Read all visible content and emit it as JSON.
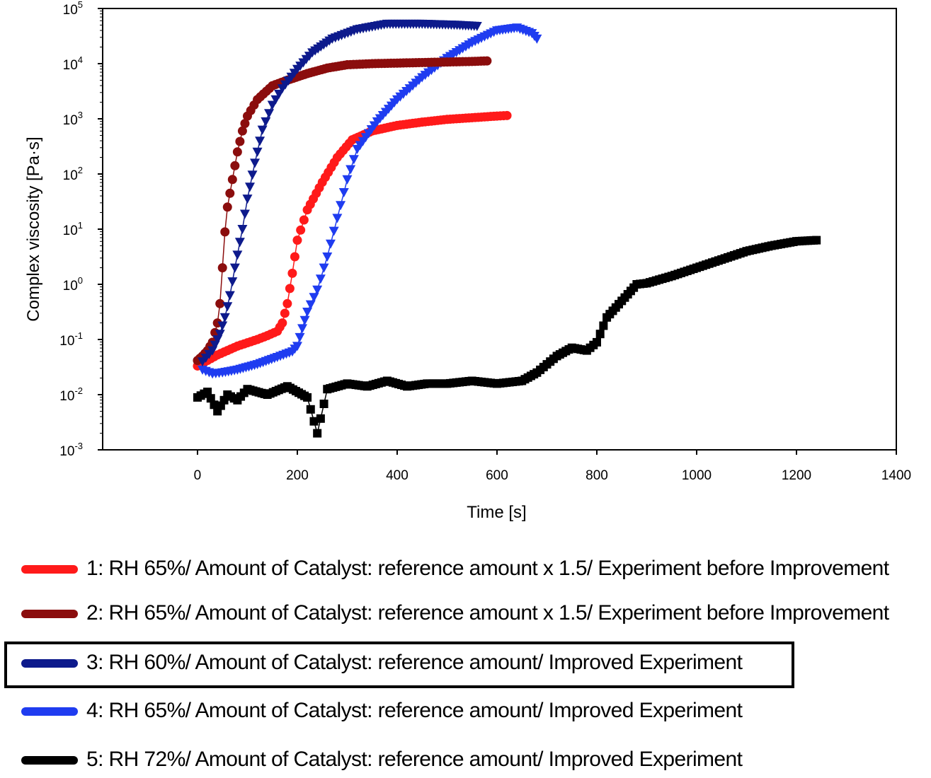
{
  "chart_data": {
    "type": "scatter",
    "xlabel": "Time [s]",
    "ylabel": "Complex viscosity [Pa·s]",
    "xlim": [
      -190,
      1400
    ],
    "ylim_log10": [
      -3,
      5
    ],
    "y_scale": "log",
    "x_ticks": [
      0,
      200,
      400,
      600,
      800,
      1000,
      1200,
      1400
    ],
    "y_ticks": [
      {
        "mantissa": "10",
        "exp": "5"
      },
      {
        "mantissa": "10",
        "exp": "4"
      },
      {
        "mantissa": "10",
        "exp": "3"
      },
      {
        "mantissa": "10",
        "exp": "2"
      },
      {
        "mantissa": "10",
        "exp": "1"
      },
      {
        "mantissa": "10",
        "exp": "0"
      },
      {
        "mantissa": "10",
        "exp": "-1"
      },
      {
        "mantissa": "10",
        "exp": "-2"
      },
      {
        "mantissa": "10",
        "exp": "-3"
      }
    ],
    "series": [
      {
        "name": "1: RH 65%/ Amount of Catalyst: reference amount x 1.5/ Experiment before Improvement",
        "color": "#ff1a1a",
        "marker": "circle",
        "points": [
          [
            0,
            -1.48
          ],
          [
            20,
            -1.38
          ],
          [
            40,
            -1.28
          ],
          [
            60,
            -1.2
          ],
          [
            80,
            -1.12
          ],
          [
            100,
            -1.06
          ],
          [
            120,
            -1.0
          ],
          [
            140,
            -0.93
          ],
          [
            160,
            -0.85
          ],
          [
            170,
            -0.7
          ],
          [
            180,
            -0.35
          ],
          [
            190,
            0.2
          ],
          [
            200,
            0.8
          ],
          [
            220,
            1.35
          ],
          [
            250,
            1.85
          ],
          [
            280,
            2.3
          ],
          [
            310,
            2.62
          ],
          [
            350,
            2.78
          ],
          [
            400,
            2.88
          ],
          [
            450,
            2.94
          ],
          [
            500,
            2.99
          ],
          [
            550,
            3.02
          ],
          [
            600,
            3.05
          ],
          [
            620,
            3.06
          ]
        ]
      },
      {
        "name": "2: RH 65%/ Amount of Catalyst: reference amount x 1.5/ Experiment before Improvement",
        "color": "#8b0d0d",
        "marker": "circle",
        "points": [
          [
            0,
            -1.38
          ],
          [
            10,
            -1.3
          ],
          [
            20,
            -1.2
          ],
          [
            30,
            -1.05
          ],
          [
            40,
            -0.7
          ],
          [
            45,
            -0.35
          ],
          [
            50,
            0.3
          ],
          [
            55,
            0.95
          ],
          [
            60,
            1.4
          ],
          [
            70,
            1.9
          ],
          [
            80,
            2.4
          ],
          [
            90,
            2.78
          ],
          [
            100,
            3.05
          ],
          [
            120,
            3.35
          ],
          [
            150,
            3.6
          ],
          [
            180,
            3.7
          ],
          [
            220,
            3.82
          ],
          [
            260,
            3.92
          ],
          [
            300,
            3.98
          ],
          [
            350,
            4.0
          ],
          [
            400,
            4.01
          ],
          [
            450,
            4.02
          ],
          [
            500,
            4.03
          ],
          [
            550,
            4.04
          ],
          [
            580,
            4.05
          ]
        ]
      },
      {
        "name": "3: RH 60%/ Amount of Catalyst: reference amount/ Improved Experiment",
        "color": "#0d1a8c",
        "marker": "triangle-down",
        "points": [
          [
            10,
            -1.4
          ],
          [
            30,
            -1.2
          ],
          [
            45,
            -0.9
          ],
          [
            55,
            -0.6
          ],
          [
            65,
            -0.2
          ],
          [
            75,
            0.3
          ],
          [
            90,
            1.0
          ],
          [
            100,
            1.55
          ],
          [
            115,
            2.2
          ],
          [
            130,
            2.8
          ],
          [
            150,
            3.25
          ],
          [
            170,
            3.55
          ],
          [
            200,
            3.9
          ],
          [
            230,
            4.2
          ],
          [
            270,
            4.45
          ],
          [
            320,
            4.62
          ],
          [
            380,
            4.72
          ],
          [
            450,
            4.72
          ],
          [
            520,
            4.7
          ],
          [
            560,
            4.68
          ]
        ]
      },
      {
        "name": "4: RH 65%/ Amount of Catalyst: reference amount/ Improved Experiment",
        "color": "#1f3cf0",
        "marker": "triangle-down",
        "points": [
          [
            10,
            -1.55
          ],
          [
            30,
            -1.62
          ],
          [
            50,
            -1.6
          ],
          [
            80,
            -1.55
          ],
          [
            120,
            -1.45
          ],
          [
            160,
            -1.32
          ],
          [
            190,
            -1.22
          ],
          [
            200,
            -1.12
          ],
          [
            210,
            -0.8
          ],
          [
            220,
            -0.5
          ],
          [
            240,
            -0.1
          ],
          [
            260,
            0.5
          ],
          [
            280,
            1.2
          ],
          [
            300,
            1.9
          ],
          [
            320,
            2.45
          ],
          [
            360,
            2.95
          ],
          [
            400,
            3.35
          ],
          [
            450,
            3.75
          ],
          [
            500,
            4.1
          ],
          [
            550,
            4.38
          ],
          [
            600,
            4.6
          ],
          [
            640,
            4.65
          ],
          [
            670,
            4.55
          ],
          [
            680,
            4.45
          ]
        ]
      },
      {
        "name": "5: RH 72%/ Amount of Catalyst: reference amount/ Improved Experiment",
        "color": "#000000",
        "marker": "square",
        "points": [
          [
            0,
            -2.05
          ],
          [
            20,
            -1.95
          ],
          [
            40,
            -2.3
          ],
          [
            60,
            -2.0
          ],
          [
            80,
            -2.1
          ],
          [
            100,
            -1.9
          ],
          [
            140,
            -2.0
          ],
          [
            180,
            -1.85
          ],
          [
            220,
            -2.05
          ],
          [
            240,
            -2.7
          ],
          [
            260,
            -1.9
          ],
          [
            300,
            -1.8
          ],
          [
            340,
            -1.85
          ],
          [
            380,
            -1.75
          ],
          [
            420,
            -1.85
          ],
          [
            460,
            -1.8
          ],
          [
            500,
            -1.8
          ],
          [
            550,
            -1.75
          ],
          [
            600,
            -1.8
          ],
          [
            650,
            -1.75
          ],
          [
            680,
            -1.6
          ],
          [
            700,
            -1.45
          ],
          [
            720,
            -1.3
          ],
          [
            750,
            -1.15
          ],
          [
            780,
            -1.2
          ],
          [
            800,
            -1.05
          ],
          [
            820,
            -0.6
          ],
          [
            850,
            -0.3
          ],
          [
            880,
            0.0
          ],
          [
            900,
            0.02
          ],
          [
            950,
            0.15
          ],
          [
            1000,
            0.3
          ],
          [
            1050,
            0.45
          ],
          [
            1100,
            0.6
          ],
          [
            1150,
            0.7
          ],
          [
            1200,
            0.78
          ],
          [
            1240,
            0.8
          ]
        ]
      }
    ],
    "legend": {
      "placement": "below",
      "highlighted_index": 2
    }
  }
}
